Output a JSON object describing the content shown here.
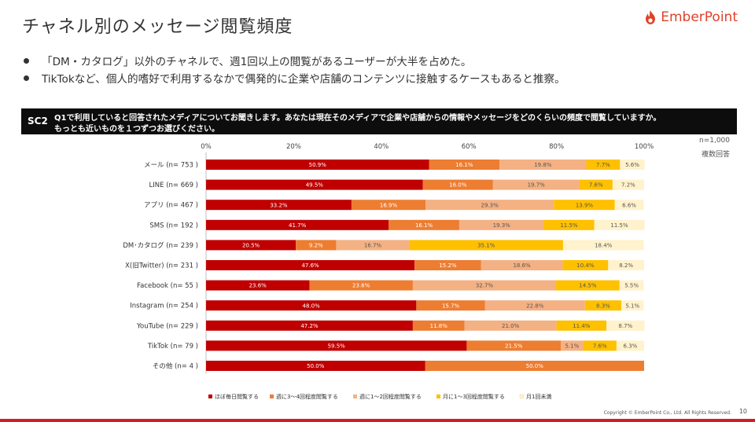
{
  "header": {
    "title": "チャネル別のメッセージ閲覧頻度",
    "brand": "EmberPoint"
  },
  "bullets": [
    "「DM・カタログ」以外のチャネルで、週1回以上の閲覧があるユーザーが大半を占めた。",
    "TikTokなど、個人的嗜好で利用するなかで偶発的に企業や店舗のコンテンツに接触するケースもあると推察。"
  ],
  "question": {
    "code": "SC2",
    "line1": "Q1で利用していると回答されたメディアについてお聞きします。あなたは現在そのメディアで企業や店舗からの情報やメッセージをどのくらいの頻度で閲覧していますか。",
    "line2": "もっとも近いものを１つずつお選びください。"
  },
  "notes": {
    "n": "n=1,000",
    "multi": "複数回答"
  },
  "footer": {
    "copyright": "Copyright © EmberPoint Co., Ltd. All Rights Reserved.",
    "page": "10"
  },
  "colors": {
    "s1": "#c00000",
    "s2": "#ed7d31",
    "s3": "#f4b183",
    "s4": "#ffc000",
    "s5": "#fff2cc",
    "brand": "#e0412b"
  },
  "chart_data": {
    "type": "bar",
    "orientation": "horizontal-stacked-100",
    "categories": [
      "メール (n= 753 )",
      "LINE (n= 669 )",
      "アプリ (n= 467 )",
      "SMS (n= 192 )",
      "DM･カタログ (n= 239 )",
      "X(旧Twitter) (n= 231 )",
      "Facebook (n= 55 )",
      "Instagram (n= 254 )",
      "YouTube (n= 229 )",
      "TikTok (n= 79 )",
      "その他 (n= 4 )"
    ],
    "xticks": [
      "0%",
      "20%",
      "40%",
      "60%",
      "80%",
      "100%"
    ],
    "xlim": [
      0,
      100
    ],
    "legend_position": "bottom",
    "grid": false,
    "series": [
      {
        "name": "ほぼ毎日閲覧する",
        "values": [
          50.9,
          49.5,
          33.2,
          41.7,
          20.5,
          47.6,
          23.6,
          48.0,
          47.2,
          59.5,
          50.0
        ],
        "labels": [
          "50.9%",
          "49.5%",
          "33.2%",
          "41.7%",
          "20.5%",
          "47.6%",
          "23.6%",
          "48.0%",
          "47.2%",
          "59.5%",
          "50.0%"
        ]
      },
      {
        "name": "週に3～4回程度閲覧する",
        "values": [
          16.1,
          16.0,
          16.9,
          16.1,
          9.2,
          15.2,
          23.6,
          15.7,
          11.8,
          21.5,
          50.0
        ],
        "labels": [
          "16.1%",
          "16.0%",
          "16.9%",
          "16.1%",
          "9.2%",
          "15.2%",
          "23.6%",
          "15.7%",
          "11.8%",
          "21.5%",
          "50.0%"
        ]
      },
      {
        "name": "週に1～2回程度閲覧する",
        "values": [
          19.8,
          19.7,
          29.3,
          19.3,
          16.7,
          18.6,
          32.7,
          22.8,
          21.0,
          5.1,
          0
        ],
        "labels": [
          "19.8%",
          "19.7%",
          "29.3%",
          "19.3%",
          "16.7%",
          "18.6%",
          "32.7%",
          "22.8%",
          "21.0%",
          "5.1%",
          ""
        ]
      },
      {
        "name": "月に1～3回程度閲覧する",
        "values": [
          7.7,
          7.6,
          13.9,
          11.5,
          35.1,
          10.4,
          14.5,
          8.3,
          11.4,
          7.6,
          0
        ],
        "labels": [
          "7.7%",
          "7.6%",
          "13.9%",
          "11.5%",
          "35.1%",
          "10.4%",
          "14.5%",
          "8.3%",
          "11.4%",
          "7.6%",
          ""
        ]
      },
      {
        "name": "月1回未満",
        "values": [
          5.6,
          7.2,
          6.6,
          11.5,
          18.4,
          8.2,
          5.5,
          5.1,
          8.7,
          6.3,
          0
        ],
        "labels": [
          "5.6%",
          "7.2%",
          "6.6%",
          "11.5%",
          "18.4%",
          "8.2%",
          "5.5%",
          "5.1%",
          "8.7%",
          "6.3%",
          ""
        ]
      }
    ]
  }
}
